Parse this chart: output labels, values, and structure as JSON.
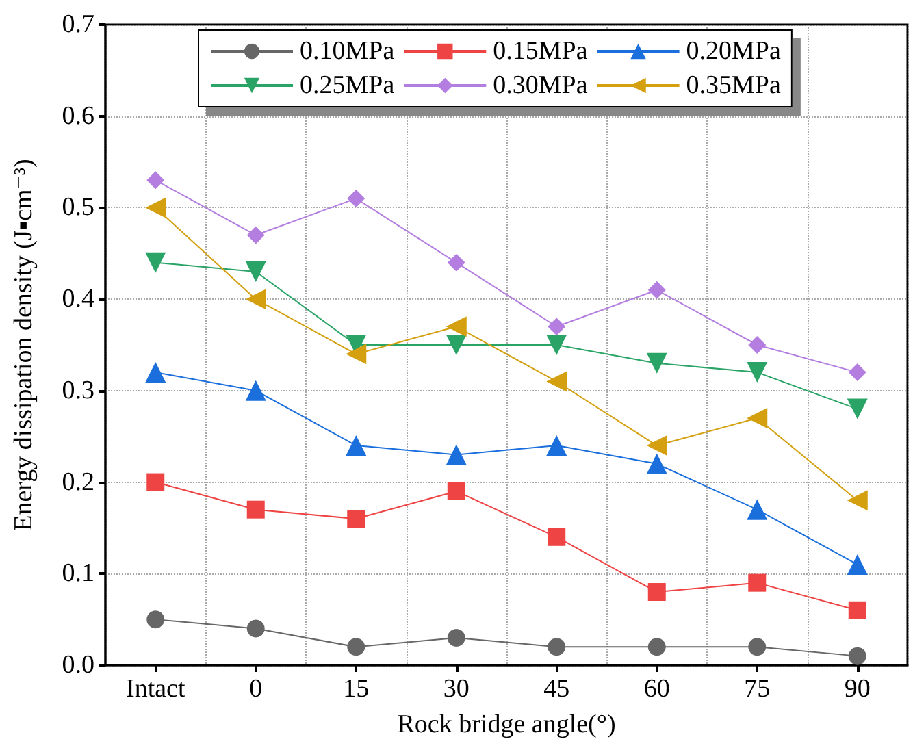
{
  "chart_data": {
    "type": "line",
    "xlabel": "Rock bridge angle(°)",
    "ylabel": "Energy dissipation density (J▪cm⁻³)",
    "categories": [
      "Intact",
      "0",
      "15",
      "30",
      "45",
      "60",
      "75",
      "90"
    ],
    "series": [
      {
        "name": "0.10MPa",
        "color": "#666666",
        "marker": "circle",
        "values": [
          0.05,
          0.04,
          0.02,
          0.03,
          0.02,
          0.02,
          0.02,
          0.01
        ]
      },
      {
        "name": "0.15MPa",
        "color": "#ee4444",
        "marker": "square",
        "values": [
          0.2,
          0.17,
          0.16,
          0.19,
          0.14,
          0.08,
          0.09,
          0.06
        ]
      },
      {
        "name": "0.20MPa",
        "color": "#1a6fdd",
        "marker": "triangle",
        "values": [
          0.32,
          0.3,
          0.24,
          0.23,
          0.24,
          0.22,
          0.17,
          0.11
        ]
      },
      {
        "name": "0.25MPa",
        "color": "#2aa466",
        "marker": "triangle-down",
        "values": [
          0.44,
          0.43,
          0.35,
          0.35,
          0.35,
          0.33,
          0.32,
          0.28
        ]
      },
      {
        "name": "0.30MPa",
        "color": "#b37ee0",
        "marker": "diamond",
        "values": [
          0.53,
          0.47,
          0.51,
          0.44,
          0.37,
          0.41,
          0.35,
          0.32
        ]
      },
      {
        "name": "0.35MPa",
        "color": "#d4a00f",
        "marker": "triangle-left",
        "values": [
          0.5,
          0.4,
          0.34,
          0.37,
          0.31,
          0.24,
          0.27,
          0.18
        ]
      }
    ],
    "ylim": [
      0,
      0.7
    ],
    "yticks": [
      {
        "value": 0,
        "label": "0.0"
      },
      0.1,
      0.2,
      0.3,
      0.4,
      0.5,
      0.6,
      0.7
    ],
    "grid": true,
    "legend": "top",
    "line_style": "solid"
  }
}
